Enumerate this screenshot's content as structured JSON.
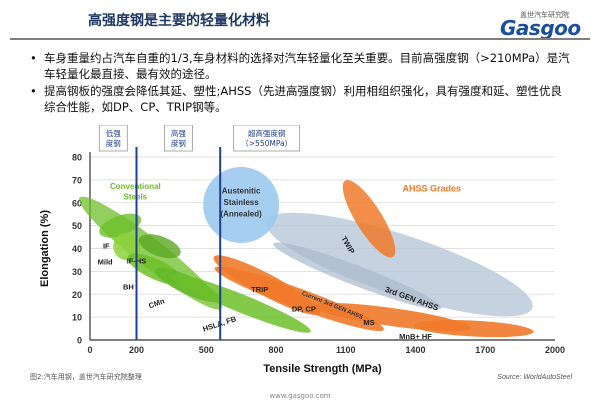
{
  "header": {
    "title": "高强度钢是主要的轻量化材料",
    "logo_cn": "盖世汽车研究院",
    "logo_en": "Gasgoo"
  },
  "bullets": [
    "车身重量约占汽车自重的1/3,车身材料的选择对汽车轻量化至关重要。目前高强度钢（>210MPa）是汽车轻量化最直接、最有效的途径。",
    "提高钢板的强度会降低其延、塑性;AHSS（先进高强度钢）利用相组织强化，具有强度和延、塑性优良综合性能，如DP、CP、TRIP钢等。"
  ],
  "chart_data": {
    "type": "scatter",
    "xlabel": "Tensile Strength (MPa)",
    "ylabel": "Elongation (%)",
    "xticks": [
      0,
      200,
      500,
      800,
      1100,
      1400,
      1700,
      2000
    ],
    "yticks": [
      0,
      10,
      20,
      30,
      40,
      50,
      60,
      70,
      80
    ],
    "xlim": [
      0,
      2000
    ],
    "ylim": [
      0,
      80
    ],
    "grid": true,
    "band_labels": [
      "低强\n度钢",
      "高强\n度钢",
      "超高强度钢\n（>550MPa）"
    ],
    "group_labels": {
      "conventional": "Conventional Steels",
      "ahss": "AHSS Grades",
      "austenitic": "Austenitic Stainless (Annealed)"
    },
    "grades": [
      "IF",
      "Mild",
      "IF-HS",
      "BH",
      "CMn",
      "HSLA, FB",
      "TRIP",
      "DP, CP",
      "MS",
      "MnB+ HF",
      "TWIP",
      "3rd GEN AHSS",
      "Current 3rd GEN AHSS"
    ],
    "caption": "图2:汽车用钢，盖世汽车研究院整理",
    "source": "Source:  WorldAutoSteel"
  },
  "footer": {
    "url": "www.gasgoo.com"
  },
  "colors": {
    "title": "#1f3864",
    "conventional": "#6dbf2a",
    "ahss": "#f07a2a",
    "austenitic": "#9cc9ee",
    "gen3": "#b8c7d8"
  }
}
